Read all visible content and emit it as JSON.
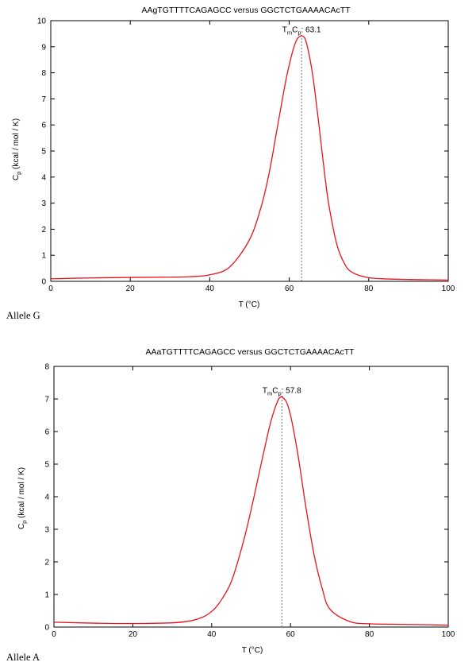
{
  "chart_data": [
    {
      "type": "line",
      "title": "AAgTGTTTTCAGAGCC versus GGCTCTGAAAACAcTT",
      "xlabel": "T (°C)",
      "ylabel": "C",
      "ylabel_sub": "p",
      "ylabel_rest": " (kcal / mol / K)",
      "xlim": [
        0,
        100
      ],
      "ylim": [
        0,
        10
      ],
      "x_ticks": [
        0,
        20,
        40,
        60,
        80,
        100
      ],
      "y_ticks": [
        0,
        1,
        2,
        3,
        4,
        5,
        6,
        7,
        8,
        9,
        10
      ],
      "grid": false,
      "series_color": "#e8141c",
      "series": [
        {
          "x": [
            0,
            10,
            20,
            30,
            35,
            40,
            45,
            50,
            53,
            55,
            57,
            59,
            60,
            61,
            62,
            63,
            63.1,
            64,
            65,
            66,
            67,
            68,
            69,
            70,
            72,
            74,
            76,
            80,
            85,
            90,
            95,
            100
          ],
          "y": [
            0.1,
            0.13,
            0.15,
            0.16,
            0.18,
            0.25,
            0.55,
            1.6,
            2.9,
            4.2,
            5.9,
            7.6,
            8.3,
            8.9,
            9.3,
            9.42,
            9.43,
            9.3,
            8.7,
            7.8,
            6.6,
            5.3,
            4.0,
            2.9,
            1.4,
            0.65,
            0.33,
            0.14,
            0.09,
            0.07,
            0.06,
            0.05
          ]
        }
      ],
      "tm": 63.1,
      "tm_label": {
        "T": "T",
        "m": "m",
        "C": "C",
        "p": "p",
        "value": ": 63.1"
      },
      "panel_label": "Allele G"
    },
    {
      "type": "line",
      "title": "AAaTGTTTTCAGAGCC versus GGCTCTGAAAACAcTT",
      "xlabel": "T (°C)",
      "ylabel": "C",
      "ylabel_sub": "p",
      "ylabel_rest": " (kcal / mol / K)",
      "xlim": [
        0,
        100
      ],
      "ylim": [
        0,
        8
      ],
      "x_ticks": [
        0,
        20,
        40,
        60,
        80,
        100
      ],
      "y_ticks": [
        0,
        1,
        2,
        3,
        4,
        5,
        6,
        7,
        8
      ],
      "grid": false,
      "series_color": "#e8141c",
      "series": [
        {
          "x": [
            0,
            10,
            20,
            30,
            35,
            38,
            40,
            42,
            45,
            48,
            50,
            52,
            54,
            55,
            56,
            57,
            57.8,
            58,
            59,
            60,
            61,
            62,
            63,
            64,
            66,
            68,
            70,
            75,
            80,
            90,
            100
          ],
          "y": [
            0.15,
            0.12,
            0.11,
            0.13,
            0.2,
            0.32,
            0.48,
            0.75,
            1.4,
            2.6,
            3.6,
            4.7,
            5.8,
            6.3,
            6.7,
            7.0,
            7.08,
            7.05,
            6.9,
            6.5,
            5.9,
            5.2,
            4.4,
            3.6,
            2.2,
            1.2,
            0.55,
            0.17,
            0.1,
            0.08,
            0.06
          ]
        }
      ],
      "tm": 57.8,
      "tm_label": {
        "T": "T",
        "m": "m",
        "C": "C",
        "p": "p",
        "value": ": 57.8"
      },
      "panel_label": "Allele A"
    }
  ]
}
